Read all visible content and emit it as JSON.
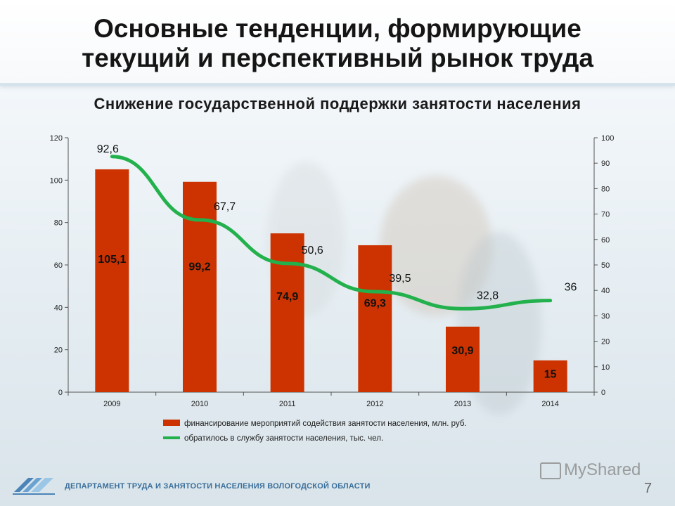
{
  "title_line1": "Основные тенденции, формирующие",
  "title_line2": "текущий и перспективный рынок труда",
  "footer": {
    "department": "ДЕПАРТАМЕНТ ТРУДА И ЗАНЯТОСТИ НАСЕЛЕНИЯ ВОЛОГОДСКОЙ ОБЛАСТИ",
    "page_number": "7",
    "watermark": "MyShared"
  },
  "colors": {
    "bar": "#cc3300",
    "line": "#22b14c",
    "axis": "#555555"
  },
  "chart_data": {
    "type": "bar+line",
    "title": "Снижение государственной поддержки занятости населения",
    "categories": [
      "2009",
      "2010",
      "2011",
      "2012",
      "2013",
      "2014"
    ],
    "series": [
      {
        "name": "финансирование мероприятий содействия занятости населения, млн. руб.",
        "type": "bar",
        "axis": "left",
        "values": [
          105.1,
          99.2,
          74.9,
          69.3,
          30.9,
          15
        ],
        "labels": [
          "105,1",
          "99,2",
          "74,9",
          "69,3",
          "30,9",
          "15"
        ]
      },
      {
        "name": "обратилось в службу занятости населения, тыс. чел.",
        "type": "line",
        "axis": "right",
        "values": [
          92.6,
          67.7,
          50.6,
          39.5,
          32.8,
          36
        ],
        "labels": [
          "92,6",
          "67,7",
          "50,6",
          "39,5",
          "32,8",
          "36"
        ]
      }
    ],
    "left_axis": {
      "min": 0,
      "max": 120,
      "ticks": [
        0,
        20,
        40,
        60,
        80,
        100,
        120
      ]
    },
    "right_axis": {
      "min": 0,
      "max": 100,
      "ticks": [
        0,
        10,
        20,
        30,
        40,
        50,
        60,
        70,
        80,
        90,
        100
      ]
    },
    "grid": false,
    "legend": "bottom"
  }
}
